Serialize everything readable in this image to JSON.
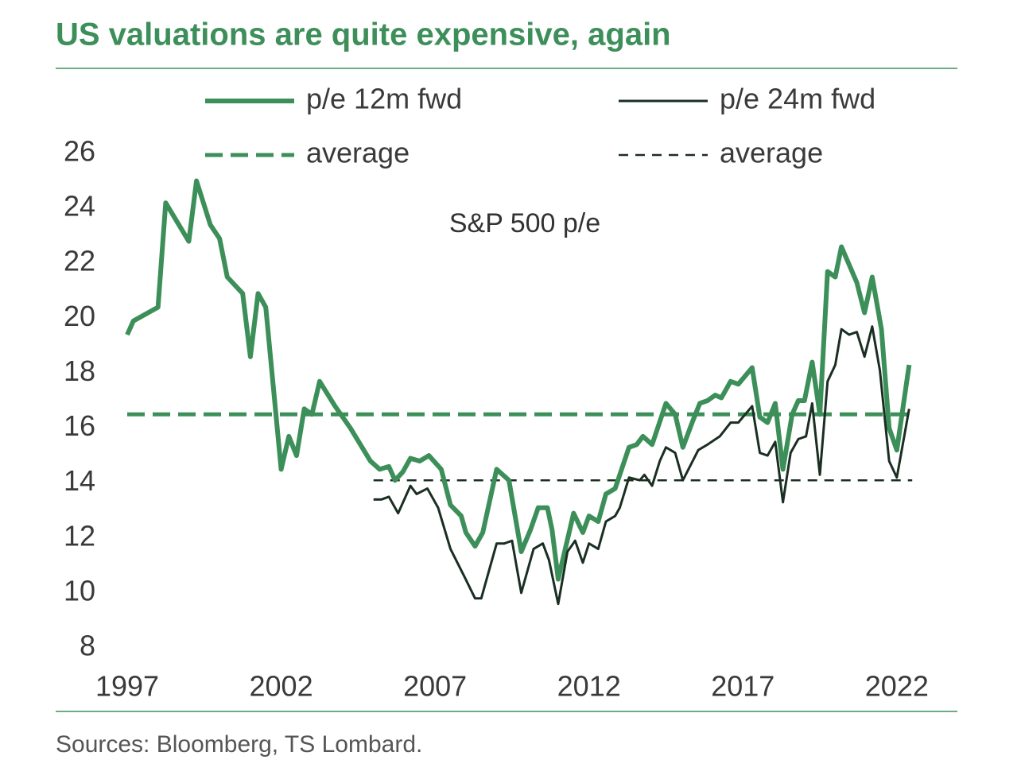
{
  "chart_data": {
    "type": "line",
    "title": "US valuations are quite expensive, again",
    "annotation": "S&P 500 p/e",
    "source": "Sources: Bloomberg, TS Lombard.",
    "xlim": [
      1997,
      2022.5
    ],
    "xticks": [
      1997,
      2002,
      2007,
      2012,
      2017,
      2022
    ],
    "ylim": [
      8,
      26
    ],
    "yticks": [
      8,
      10,
      12,
      14,
      16,
      18,
      20,
      22,
      24,
      26
    ],
    "series": [
      {
        "name": "p/e 12m fwd",
        "color": "#3d8f5a",
        "width": 6,
        "dashed": false,
        "x": [
          1997.0,
          1997.2,
          1998.0,
          1998.25,
          1999.0,
          1999.25,
          1999.7,
          2000.0,
          2000.25,
          2000.75,
          2001.0,
          2001.25,
          2001.5,
          2002.0,
          2002.25,
          2002.5,
          2002.75,
          2003.0,
          2003.25,
          2003.75,
          2004.25,
          2004.9,
          2005.2,
          2005.5,
          2005.7,
          2005.95,
          2006.2,
          2006.5,
          2006.8,
          2007.2,
          2007.5,
          2007.85,
          2008.0,
          2008.3,
          2008.55,
          2009.0,
          2009.4,
          2009.8,
          2010.1,
          2010.35,
          2010.65,
          2010.8,
          2011.0,
          2011.5,
          2011.8,
          2012.0,
          2012.3,
          2012.55,
          2012.85,
          2013.3,
          2013.55,
          2013.75,
          2014.05,
          2014.5,
          2014.8,
          2015.05,
          2015.35,
          2015.6,
          2015.85,
          2016.1,
          2016.3,
          2016.6,
          2016.85,
          2017.3,
          2017.55,
          2017.8,
          2018.05,
          2018.3,
          2018.6,
          2018.8,
          2019.0,
          2019.25,
          2019.5,
          2019.75,
          2020.0,
          2020.2,
          2020.7,
          2020.95,
          2021.2,
          2021.5,
          2021.75,
          2022.0,
          2022.4
        ],
        "values": [
          19.4,
          19.9,
          20.4,
          24.2,
          22.8,
          25.0,
          23.4,
          22.9,
          21.5,
          20.9,
          18.6,
          20.9,
          20.4,
          14.5,
          15.7,
          15.0,
          16.7,
          16.5,
          17.7,
          16.8,
          16.0,
          14.8,
          14.5,
          14.6,
          14.1,
          14.4,
          14.9,
          14.8,
          15.0,
          14.5,
          13.2,
          12.8,
          12.2,
          11.7,
          12.2,
          14.5,
          14.1,
          11.5,
          12.3,
          13.1,
          13.1,
          12.3,
          10.5,
          12.9,
          12.2,
          12.8,
          12.6,
          13.6,
          13.8,
          15.3,
          15.4,
          15.7,
          15.4,
          16.9,
          16.5,
          15.3,
          16.2,
          16.9,
          17.0,
          17.2,
          17.1,
          17.7,
          17.6,
          18.2,
          16.4,
          16.2,
          16.9,
          14.5,
          16.5,
          17.0,
          17.0,
          18.4,
          16.5,
          21.7,
          21.5,
          22.6,
          21.3,
          20.2,
          21.5,
          19.6,
          16.0,
          15.2,
          18.3
        ]
      },
      {
        "name": "p/e 24m fwd",
        "color": "#1a2e22",
        "width": 3,
        "dashed": false,
        "x": [
          2005.0,
          2005.25,
          2005.5,
          2005.8,
          2006.2,
          2006.4,
          2006.75,
          2007.1,
          2007.5,
          2007.95,
          2008.3,
          2008.5,
          2009.0,
          2009.25,
          2009.5,
          2009.8,
          2010.2,
          2010.5,
          2010.7,
          2011.0,
          2011.3,
          2011.55,
          2011.8,
          2012.0,
          2012.3,
          2012.55,
          2012.85,
          2013.0,
          2013.3,
          2013.65,
          2013.8,
          2014.05,
          2014.3,
          2014.5,
          2014.8,
          2015.05,
          2015.55,
          2015.85,
          2016.25,
          2016.6,
          2016.85,
          2017.3,
          2017.55,
          2017.8,
          2018.05,
          2018.3,
          2018.55,
          2018.8,
          2019.05,
          2019.25,
          2019.5,
          2019.75,
          2020.0,
          2020.2,
          2020.45,
          2020.7,
          2020.95,
          2021.2,
          2021.45,
          2021.75,
          2022.0,
          2022.4
        ],
        "values": [
          13.4,
          13.4,
          13.5,
          12.9,
          13.9,
          13.6,
          13.8,
          13.1,
          11.6,
          10.6,
          9.8,
          9.8,
          11.8,
          11.8,
          11.9,
          10.0,
          11.6,
          11.8,
          11.2,
          9.6,
          11.5,
          11.9,
          11.1,
          11.8,
          11.6,
          12.6,
          12.8,
          13.1,
          14.2,
          14.1,
          14.3,
          13.9,
          14.8,
          15.3,
          15.1,
          14.1,
          15.2,
          15.4,
          15.7,
          16.2,
          16.2,
          16.8,
          15.1,
          15.0,
          15.5,
          13.3,
          15.1,
          15.6,
          15.7,
          16.9,
          14.3,
          17.7,
          18.3,
          19.6,
          19.4,
          19.5,
          18.6,
          19.7,
          18.1,
          14.8,
          14.2,
          16.7
        ]
      },
      {
        "name": "average",
        "color": "#3d8f5a",
        "width": 5,
        "dashed": true,
        "x": [
          1997,
          2022.5
        ],
        "values": [
          16.5,
          16.5
        ]
      },
      {
        "name": "average",
        "color": "#1a2e22",
        "width": 2.5,
        "dashed": true,
        "x": [
          2005,
          2022.5
        ],
        "values": [
          14.1,
          14.1
        ]
      }
    ]
  }
}
